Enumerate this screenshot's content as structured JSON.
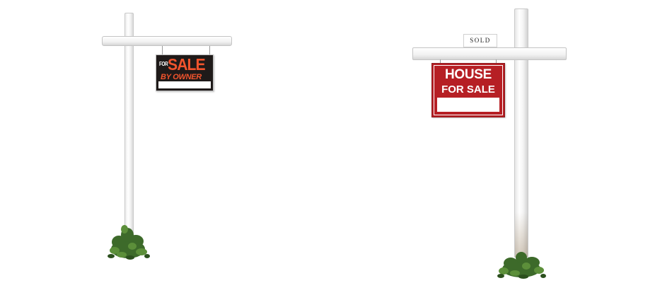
{
  "scene": {
    "background": "#ffffff",
    "post_color": "#f5f5f5"
  },
  "left_sign": {
    "line_for": "FOR",
    "line_sale": "SALE",
    "line_by_owner": "BY OWNER",
    "background_color": "#1f1a19",
    "text_color": "#f2542d"
  },
  "right_sign": {
    "rider": "SOLD",
    "line_house": "HOUSE",
    "line_for_sale": "FOR SALE",
    "background_color": "#b61f24",
    "text_color": "#ffffff"
  }
}
